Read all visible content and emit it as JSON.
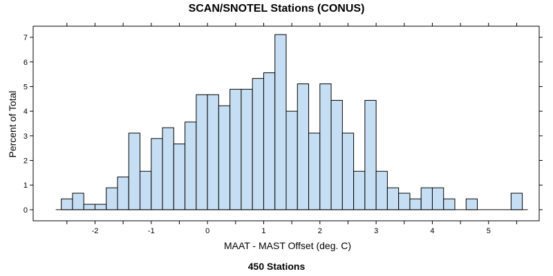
{
  "chart_data": {
    "type": "bar",
    "title": "SCAN/SNOTEL Stations (CONUS)",
    "xlabel": "MAAT - MAST Offset (deg. C)",
    "ylabel": "Percent of Total",
    "footer": "450 Stations",
    "bin_width": 0.2,
    "bins_left": [
      -2.6,
      -2.4,
      -2.2,
      -2.0,
      -1.8,
      -1.6,
      -1.4,
      -1.2,
      -1.0,
      -0.8,
      -0.6,
      -0.4,
      -0.2,
      0.0,
      0.2,
      0.4,
      0.6,
      0.8,
      1.0,
      1.2,
      1.4,
      1.6,
      1.8,
      2.0,
      2.2,
      2.4,
      2.6,
      2.8,
      3.0,
      3.2,
      3.4,
      3.6,
      3.8,
      4.0,
      4.2,
      4.4,
      4.6,
      4.8,
      5.0,
      5.2,
      5.4
    ],
    "values": [
      0.44,
      0.67,
      0.22,
      0.22,
      0.89,
      1.33,
      3.11,
      1.56,
      2.89,
      3.33,
      2.67,
      3.56,
      4.67,
      4.67,
      4.22,
      4.89,
      4.89,
      5.33,
      5.56,
      7.11,
      4.0,
      5.11,
      3.11,
      5.11,
      4.44,
      3.11,
      1.56,
      4.44,
      1.56,
      0.89,
      0.67,
      0.44,
      0.89,
      0.89,
      0.44,
      0.0,
      0.44,
      0.0,
      0.0,
      0.0,
      0.67
    ],
    "xlim": [
      -3.1,
      5.9
    ],
    "ylim": [
      -0.45,
      7.45
    ],
    "x_ticks": [
      -2,
      -1,
      0,
      1,
      2,
      3,
      4,
      5
    ],
    "y_ticks": [
      0,
      1,
      2,
      3,
      4,
      5,
      6,
      7
    ],
    "bar_color": "#c6def3",
    "bar_edge_color": "#000000",
    "grid": false
  }
}
